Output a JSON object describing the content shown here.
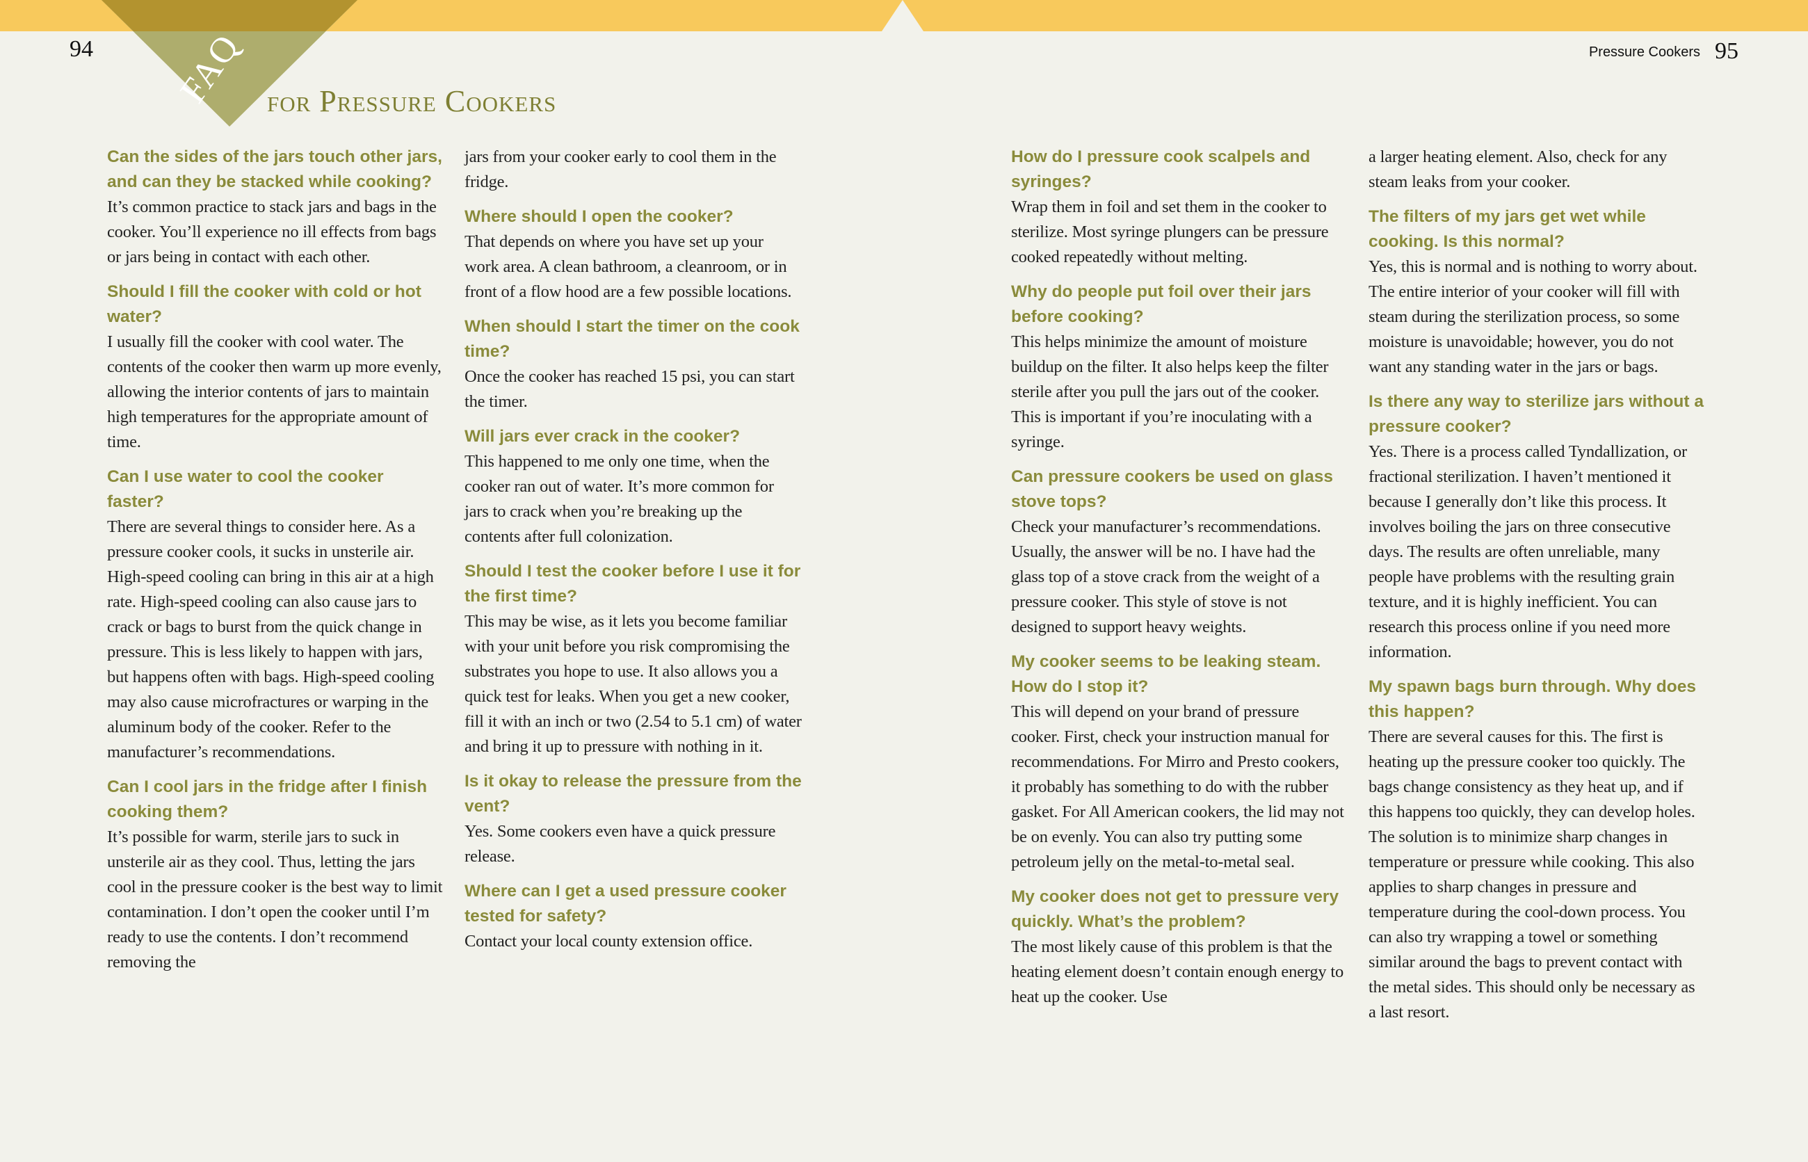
{
  "colors": {
    "background": "#f2f2eb",
    "top_bar": "#f8c95c",
    "triangle": "#aead6d",
    "triangle_overlap": "#b3932f",
    "heading": "#8a8b3b"
  },
  "left_page": {
    "page_number": "94",
    "badge": "FAQ",
    "title": "for Pressure Cookers"
  },
  "right_page": {
    "running_head": "Pressure Cookers",
    "page_number": "95"
  },
  "columns": [
    [
      {
        "type": "q",
        "text": "Can the sides of the jars touch other jars, and can they be stacked while cooking?"
      },
      {
        "type": "a",
        "text": "It’s common practice to stack jars and bags in the cooker. You’ll experience no ill effects from bags or jars being in contact with each other."
      },
      {
        "type": "q",
        "text": "Should I fill the cooker with cold or hot water?"
      },
      {
        "type": "a",
        "text": "I usually fill the cooker with cool water. The contents of the cooker then warm up more evenly, allowing the interior contents of jars to maintain high temperatures for the appropriate amount of time."
      },
      {
        "type": "q",
        "text": "Can I use water to cool the cooker faster?"
      },
      {
        "type": "a",
        "text": "There are several things to consider here. As a pressure cooker cools, it sucks in unsterile air. High-speed cooling can bring in this air at a high rate. High-speed cooling can also cause jars to crack or bags to burst from the quick change in pressure. This is less likely to happen with jars, but happens often with bags. High-speed cooling may also cause microfractures or warping in the aluminum body of the cooker. Refer to the manufacturer’s recommendations."
      },
      {
        "type": "q",
        "text": "Can I cool jars in the fridge after I finish cooking them?"
      },
      {
        "type": "a",
        "text": "It’s possible for warm, sterile jars to suck in unsterile air as they cool. Thus, letting the jars cool in the pressure cooker is the best way to limit contamination. I don’t open the cooker until I’m ready to use the contents. I don’t recommend removing the"
      }
    ],
    [
      {
        "type": "a",
        "text": "jars from your cooker early to cool them in the fridge."
      },
      {
        "type": "q",
        "text": "Where should I open the cooker?"
      },
      {
        "type": "a",
        "text": "That depends on where you have set up your work area. A clean bathroom, a cleanroom, or in front of a flow hood are a few possible locations."
      },
      {
        "type": "q",
        "text": "When should I start the timer on the cook time?"
      },
      {
        "type": "a",
        "text": "Once the cooker has reached 15 psi, you can start the timer."
      },
      {
        "type": "q",
        "text": "Will jars ever crack in the cooker?"
      },
      {
        "type": "a",
        "text": "This happened to me only one time, when the cooker ran out of water. It’s more common for jars to crack when you’re breaking up the contents after full colonization."
      },
      {
        "type": "q",
        "text": "Should I test the cooker before I use it for the first time?"
      },
      {
        "type": "a",
        "text": "This may be wise, as it lets you become familiar with your unit before you risk compromising the substrates you hope to use. It also allows you a quick test for leaks. When you get a new cooker, fill it with an inch or two (2.54 to 5.1 cm) of water and bring it up to pressure with nothing in it."
      },
      {
        "type": "q",
        "text": "Is it okay to release the pressure from the vent?"
      },
      {
        "type": "a",
        "text": "Yes. Some cookers even have a quick pressure release."
      },
      {
        "type": "q",
        "text": "Where can I get a used pressure cooker tested for safety?"
      },
      {
        "type": "a",
        "text": "Contact your local county extension office."
      }
    ],
    [
      {
        "type": "q",
        "text": "How do I pressure cook scalpels and syringes?"
      },
      {
        "type": "a",
        "text": "Wrap them in foil and set them in the cooker to sterilize. Most syringe plungers can be pressure cooked repeatedly without melting."
      },
      {
        "type": "q",
        "text": "Why do people put foil over their jars before cooking?"
      },
      {
        "type": "a",
        "text": "This helps minimize the amount of moisture buildup on the filter. It also helps keep the filter sterile after you pull the jars out of the cooker. This is important if you’re inoculating with a syringe."
      },
      {
        "type": "q",
        "text": "Can pressure cookers be used on glass stove tops?"
      },
      {
        "type": "a",
        "text": "Check your manufacturer’s recommendations. Usually, the answer will be no. I have had the glass top of a stove crack from the weight of a pressure cooker. This style of stove is not designed to support heavy weights."
      },
      {
        "type": "q",
        "text": "My cooker seems to be leaking steam. How do I stop it?"
      },
      {
        "type": "a",
        "text": "This will depend on your brand of pressure cooker. First, check your instruction manual for recommendations. For Mirro and Presto cookers, it probably has something to do with the rubber gasket. For All American cookers, the lid may not be on evenly. You can also try putting some petroleum jelly on the metal-to-metal seal."
      },
      {
        "type": "q",
        "text": "My cooker does not get to pressure very quickly. What’s the problem?"
      },
      {
        "type": "a",
        "text": "The most likely cause of this problem is that the heating element doesn’t contain enough energy to heat up the cooker. Use"
      }
    ],
    [
      {
        "type": "a",
        "text": "a larger heating element. Also, check for any steam leaks from your cooker."
      },
      {
        "type": "q",
        "text": "The filters of my jars get wet while cooking. Is this normal?"
      },
      {
        "type": "a",
        "text": "Yes, this is normal and is nothing to worry about. The entire interior of your cooker will fill with steam during the sterilization process, so some moisture is unavoidable; however, you do not want any standing water in the jars or bags."
      },
      {
        "type": "q",
        "text": "Is there any way to sterilize jars without a pressure cooker?"
      },
      {
        "type": "a",
        "text": "Yes. There is a process called Tyndallization, or fractional sterilization. I haven’t mentioned it because I generally don’t like this process. It involves boiling the jars on three consecutive days. The results are often unreliable, many people have problems with the resulting grain texture, and it is highly inefficient. You can research this process online if you need more information."
      },
      {
        "type": "q",
        "text": "My spawn bags burn through. Why does this happen?"
      },
      {
        "type": "a",
        "text": "There are several causes for this. The first is heating up the pressure cooker too quickly. The bags change consistency as they heat up, and if this happens too quickly, they can develop holes. The solution is to minimize sharp changes in temperature or pressure while cooking. This also applies to sharp changes in pressure and temperature during the cool-down process. You can also try wrapping a towel or something similar around the bags to prevent contact with the metal sides. This should only be necessary as a last resort."
      }
    ]
  ]
}
